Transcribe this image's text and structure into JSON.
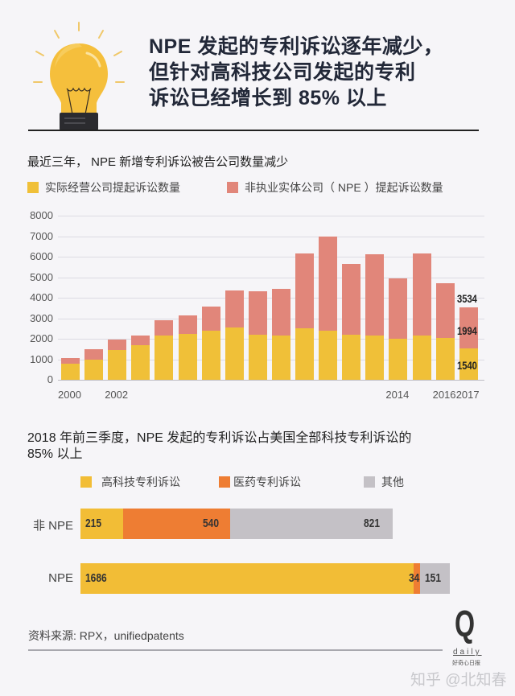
{
  "header": {
    "icon": "lightbulb-icon",
    "title_lines": [
      "NPE 发起的专利诉讼逐年减少，",
      "但针对高科技公司发起的专利",
      "诉讼已经增长到 85% 以上"
    ]
  },
  "colors": {
    "operating": "#f0c038",
    "npe": "#e1867a",
    "hightech": "#f2bd36",
    "pharma": "#ee7d33",
    "other": "#c4c1c6",
    "background": "#f6f5f8"
  },
  "chart1": {
    "title": "最近三年， NPE 新增专利诉讼被告公司数量减少",
    "legend": [
      {
        "label": "实际经营公司提起诉讼数量",
        "color": "#f0c038"
      },
      {
        "label": "非执业实体公司（ NPE ）提起诉讼数量",
        "color": "#e1867a"
      }
    ],
    "y_ticks": [
      "8000",
      "7000",
      "6000",
      "5000",
      "4000",
      "3000",
      "2000",
      "1000",
      "0"
    ],
    "x_labels": [
      {
        "label": "2000",
        "index": 0
      },
      {
        "label": "2002",
        "index": 2
      },
      {
        "label": "2014",
        "index": 14
      },
      {
        "label": "2016",
        "index": 16
      },
      {
        "label": "2017",
        "index": 17
      }
    ],
    "annotations": {
      "total": "3534",
      "npe": "1994",
      "operating": "1540"
    }
  },
  "chart2": {
    "title_line1": "2018 年前三季度，NPE 发起的专利诉讼占美国全部科技专利诉讼的",
    "title_line2": "85% 以上",
    "legend": [
      {
        "label": "高科技专利诉讼",
        "color": "#f2bd36"
      },
      {
        "label": "医药专利诉讼",
        "color": "#ee7d33"
      },
      {
        "label": "其他",
        "color": "#c4c1c6"
      }
    ],
    "rows": [
      {
        "label": "非 NPE",
        "values": [
          "215",
          "540",
          "821"
        ]
      },
      {
        "label": "NPE",
        "values": [
          "1686",
          "34",
          "151"
        ]
      }
    ]
  },
  "footer": {
    "source": "资料来源: RPX，unifiedpatents",
    "logo_letter": "Q",
    "logo_word": "daily",
    "logo_sub": "好奇心日报",
    "watermark": "知乎 @北知春"
  },
  "chart_data": [
    {
      "type": "bar",
      "stacked": true,
      "title": "最近三年， NPE 新增专利诉讼被告公司数量减少",
      "xlabel": "",
      "ylabel": "",
      "ylim": [
        0,
        8000
      ],
      "grid": true,
      "legend_position": "top",
      "categories": [
        "2000",
        "2001",
        "2002",
        "2003",
        "2004",
        "2005",
        "2006",
        "2007",
        "2008",
        "2009",
        "2010",
        "2011",
        "2012",
        "2013",
        "2014",
        "2015",
        "2016",
        "2017"
      ],
      "visible_tick_labels": [
        "2000",
        "2002",
        "2014",
        "2016",
        "2017"
      ],
      "series": [
        {
          "name": "实际经营公司提起诉讼数量",
          "values": [
            800,
            1000,
            1450,
            1700,
            2150,
            2250,
            2400,
            2550,
            2200,
            2150,
            2500,
            2400,
            2200,
            2150,
            2000,
            2150,
            2050,
            1540
          ]
        },
        {
          "name": "非执业实体公司（ NPE ）提起诉讼数量",
          "values": [
            250,
            500,
            500,
            450,
            750,
            900,
            1150,
            1800,
            2100,
            2300,
            3650,
            4600,
            3450,
            3950,
            2950,
            4000,
            2650,
            1994
          ]
        }
      ],
      "totals": [
        1050,
        1500,
        1950,
        2150,
        2900,
        3150,
        3550,
        4350,
        4300,
        4450,
        6150,
        7000,
        5650,
        6100,
        4950,
        6150,
        4700,
        3534
      ],
      "annotations": [
        {
          "x": "2017",
          "labels": [
            "3534",
            "1994",
            "1540"
          ]
        }
      ]
    },
    {
      "type": "bar",
      "orientation": "horizontal",
      "stacked": true,
      "title": "2018 年前三季度，NPE 发起的专利诉讼占美国全部科技专利诉讼的 85% 以上",
      "categories": [
        "非 NPE",
        "NPE"
      ],
      "series": [
        {
          "name": "高科技专利诉讼",
          "values": [
            215,
            1686
          ]
        },
        {
          "name": "医药专利诉讼",
          "values": [
            540,
            34
          ]
        },
        {
          "name": "其他",
          "values": [
            821,
            151
          ]
        }
      ],
      "legend_position": "top",
      "grid": false
    }
  ]
}
